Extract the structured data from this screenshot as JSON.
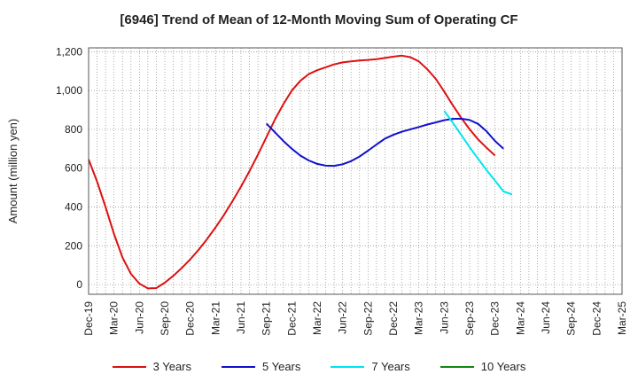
{
  "chart_data": {
    "type": "line",
    "title": "[6946]  Trend of Mean of 12-Month Moving Sum of Operating CF",
    "xlabel": "",
    "ylabel": "Amount (million yen)",
    "ylim": [
      -50,
      1220
    ],
    "y_ticks": [
      0,
      200,
      400,
      600,
      800,
      1000,
      1200
    ],
    "y_tick_labels": [
      "0",
      "200",
      "400",
      "600",
      "800",
      "1,000",
      "1,200"
    ],
    "x_tick_labels": [
      "Dec-19",
      "Mar-20",
      "Jun-20",
      "Sep-20",
      "Dec-20",
      "Mar-21",
      "Jun-21",
      "Sep-21",
      "Dec-21",
      "Mar-22",
      "Jun-22",
      "Sep-22",
      "Dec-22",
      "Mar-23",
      "Jun-23",
      "Sep-23",
      "Dec-23",
      "Mar-24",
      "Jun-24",
      "Sep-24",
      "Dec-24",
      "Mar-25"
    ],
    "grid": true,
    "legend_position": "bottom",
    "series": [
      {
        "name": "3 Years",
        "color": "#dd1111",
        "points": [
          [
            0,
            645
          ],
          [
            1,
            530
          ],
          [
            2,
            400
          ],
          [
            3,
            260
          ],
          [
            4,
            140
          ],
          [
            5,
            55
          ],
          [
            6,
            5
          ],
          [
            7,
            -20
          ],
          [
            8,
            -18
          ],
          [
            9,
            10
          ],
          [
            10,
            45
          ],
          [
            11,
            85
          ],
          [
            12,
            130
          ],
          [
            13,
            180
          ],
          [
            14,
            235
          ],
          [
            15,
            295
          ],
          [
            16,
            360
          ],
          [
            17,
            430
          ],
          [
            18,
            505
          ],
          [
            19,
            585
          ],
          [
            20,
            670
          ],
          [
            21,
            760
          ],
          [
            22,
            850
          ],
          [
            23,
            930
          ],
          [
            24,
            1000
          ],
          [
            25,
            1050
          ],
          [
            26,
            1085
          ],
          [
            27,
            1105
          ],
          [
            28,
            1120
          ],
          [
            29,
            1135
          ],
          [
            30,
            1145
          ],
          [
            31,
            1150
          ],
          [
            32,
            1155
          ],
          [
            33,
            1158
          ],
          [
            34,
            1162
          ],
          [
            35,
            1168
          ],
          [
            36,
            1175
          ],
          [
            37,
            1180
          ],
          [
            38,
            1172
          ],
          [
            39,
            1150
          ],
          [
            40,
            1110
          ],
          [
            41,
            1060
          ],
          [
            42,
            995
          ],
          [
            43,
            925
          ],
          [
            44,
            860
          ],
          [
            45,
            800
          ],
          [
            46,
            748
          ],
          [
            47,
            705
          ],
          [
            48,
            665
          ]
        ]
      },
      {
        "name": "5 Years",
        "color": "#1111cc",
        "points": [
          [
            21,
            830
          ],
          [
            22,
            785
          ],
          [
            23,
            740
          ],
          [
            24,
            700
          ],
          [
            25,
            665
          ],
          [
            26,
            640
          ],
          [
            27,
            622
          ],
          [
            28,
            613
          ],
          [
            29,
            612
          ],
          [
            30,
            620
          ],
          [
            31,
            636
          ],
          [
            32,
            660
          ],
          [
            33,
            690
          ],
          [
            34,
            722
          ],
          [
            35,
            752
          ],
          [
            36,
            772
          ],
          [
            37,
            788
          ],
          [
            38,
            800
          ],
          [
            39,
            812
          ],
          [
            40,
            825
          ],
          [
            41,
            836
          ],
          [
            42,
            847
          ],
          [
            43,
            854
          ],
          [
            44,
            855
          ],
          [
            45,
            848
          ],
          [
            46,
            828
          ],
          [
            47,
            790
          ],
          [
            48,
            740
          ],
          [
            49,
            700
          ]
        ]
      },
      {
        "name": "7 Years",
        "color": "#00e5ee",
        "points": [
          [
            42,
            895
          ],
          [
            43,
            835
          ],
          [
            44,
            772
          ],
          [
            45,
            708
          ],
          [
            46,
            648
          ],
          [
            47,
            590
          ],
          [
            48,
            535
          ],
          [
            49,
            480
          ],
          [
            50,
            465
          ]
        ]
      },
      {
        "name": "10 Years",
        "color": "#118811",
        "points": []
      }
    ]
  }
}
